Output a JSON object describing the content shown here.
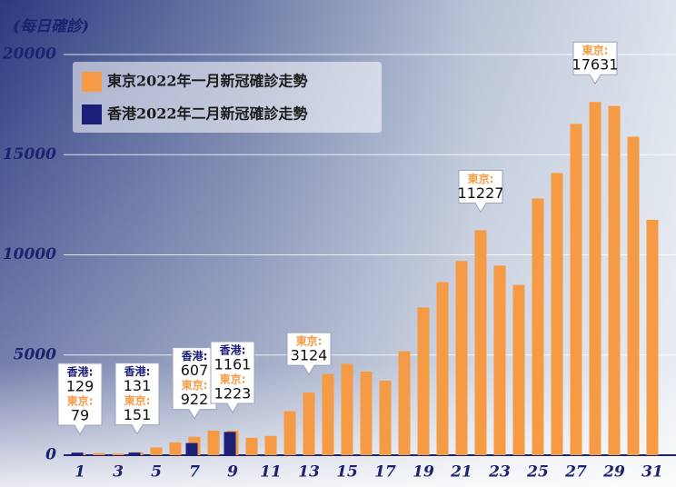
{
  "chart_data": {
    "type": "bar",
    "y_label": "(每日確診)",
    "categories": [
      "1",
      null,
      "3",
      null,
      "5",
      null,
      "7",
      null,
      "9",
      null,
      "11",
      null,
      "13",
      null,
      "15",
      null,
      "17",
      null,
      "19",
      null,
      "21",
      null,
      "23",
      null,
      "25",
      null,
      "27",
      null,
      "29",
      null,
      "31"
    ],
    "series": [
      {
        "name": "東京2022年一月新冠確診走勢",
        "label_prefix": "東京:",
        "color": "#f59a45",
        "values": [
          79,
          103,
          84,
          151,
          390,
          641,
          922,
          1224,
          1223,
          871,
          962,
          2198,
          3124,
          4051,
          4561,
          4172,
          3719,
          5185,
          7377,
          8638,
          9699,
          11227,
          9468,
          8503,
          12813,
          14086,
          16538,
          17631,
          17433,
          15895,
          11751
        ],
        "value_labels": [
          "79",
          null,
          null,
          "151",
          null,
          null,
          "922",
          null,
          "1223",
          null,
          null,
          null,
          "3124",
          null,
          null,
          null,
          null,
          null,
          null,
          null,
          null,
          "11227",
          null,
          null,
          null,
          null,
          null,
          "17631",
          null,
          null,
          null
        ]
      },
      {
        "name": "香港2022年二月新冠確診走勢",
        "label_prefix": "香港:",
        "color": "#1c1f78",
        "values": [
          129,
          null,
          null,
          131,
          null,
          null,
          607,
          null,
          1161,
          null,
          null,
          null,
          null,
          null,
          null,
          null,
          null,
          null,
          null,
          null,
          null,
          null,
          null,
          null,
          null,
          null,
          null,
          null,
          null,
          null,
          null
        ],
        "value_labels": [
          "129",
          null,
          null,
          "131",
          null,
          null,
          "607",
          null,
          "1161",
          null,
          null,
          null,
          null,
          null,
          null,
          null,
          null,
          null,
          null,
          null,
          null,
          null,
          null,
          null,
          null,
          null,
          null,
          null,
          null,
          null,
          null
        ]
      }
    ],
    "ylim": [
      0,
      20000
    ],
    "yticks": [
      0,
      5000,
      10000,
      15000,
      20000
    ],
    "grid": true
  }
}
